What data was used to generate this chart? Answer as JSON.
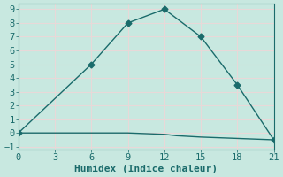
{
  "xlabel": "Humidex (Indice chaleur)",
  "ylabel": "",
  "background_color": "#c8e8e0",
  "grid_color": "#e8d8d8",
  "line_color": "#1a6b6b",
  "xlim": [
    0,
    21
  ],
  "ylim": [
    -1.2,
    9.4
  ],
  "xticks": [
    0,
    3,
    6,
    9,
    12,
    15,
    18,
    21
  ],
  "yticks": [
    -1,
    0,
    1,
    2,
    3,
    4,
    5,
    6,
    7,
    8,
    9
  ],
  "series1_x": [
    0,
    6,
    9,
    12,
    15,
    18,
    21
  ],
  "series1_y": [
    0,
    5,
    8,
    9,
    7,
    3.5,
    -0.5
  ],
  "series2_x": [
    0,
    3,
    6,
    9,
    12,
    13,
    15,
    18,
    21
  ],
  "series2_y": [
    0,
    0,
    0,
    0,
    -0.1,
    -0.2,
    -0.3,
    -0.4,
    -0.5
  ],
  "marker": "D",
  "markersize": 3.5,
  "linewidth": 1.0,
  "xlabel_fontsize": 8,
  "tick_fontsize": 7.5
}
